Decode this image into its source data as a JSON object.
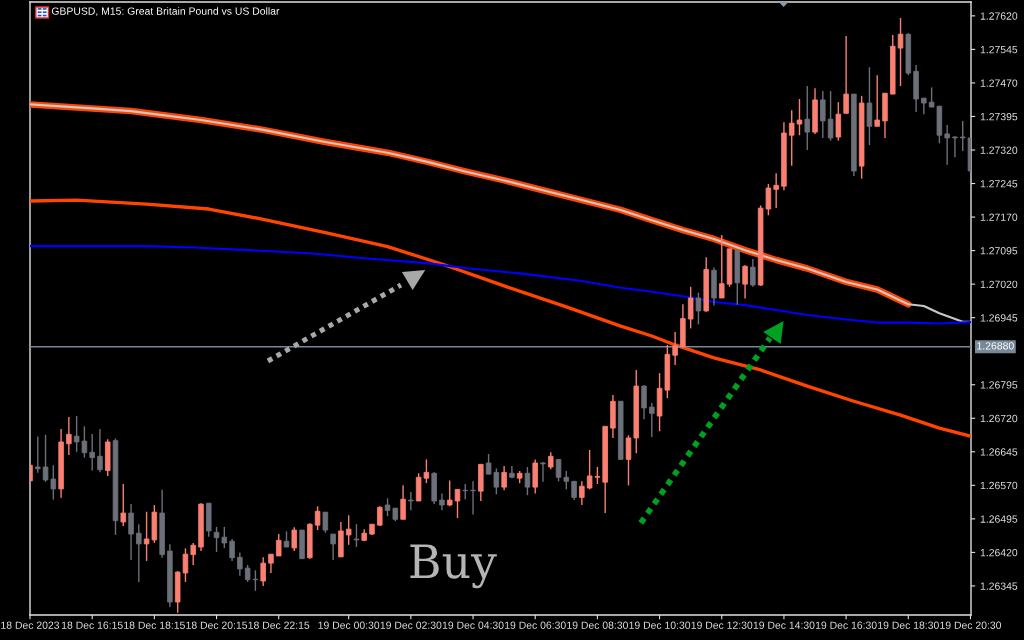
{
  "chart_data": {
    "type": "candlestick",
    "title": "GBPUSD, M15: Great Britain Pound vs US Dollar",
    "x": [
      "2023-12-18T14:15",
      "2023-12-18T14:30",
      "2023-12-18T14:45",
      "2023-12-18T15:00",
      "2023-12-18T15:15",
      "2023-12-18T15:30",
      "2023-12-18T15:45",
      "2023-12-18T16:00",
      "2023-12-18T16:15",
      "2023-12-18T16:30",
      "2023-12-18T16:45",
      "2023-12-18T17:00",
      "2023-12-18T17:15",
      "2023-12-18T17:30",
      "2023-12-18T17:45",
      "2023-12-18T18:00",
      "2023-12-18T18:15",
      "2023-12-18T18:30",
      "2023-12-18T18:45",
      "2023-12-18T19:00",
      "2023-12-18T19:15",
      "2023-12-18T19:30",
      "2023-12-18T19:45",
      "2023-12-18T20:00",
      "2023-12-18T20:15",
      "2023-12-18T20:30",
      "2023-12-18T20:45",
      "2023-12-18T21:00",
      "2023-12-18T21:15",
      "2023-12-18T21:30",
      "2023-12-18T21:45",
      "2023-12-18T22:00",
      "2023-12-18T22:15",
      "2023-12-18T22:30",
      "2023-12-18T22:45",
      "2023-12-18T23:00",
      "2023-12-18T23:15",
      "2023-12-18T23:30",
      "2023-12-18T23:45",
      "2023-12-19T00:00",
      "2023-12-19T00:15",
      "2023-12-19T00:30",
      "2023-12-19T00:45",
      "2023-12-19T01:00",
      "2023-12-19T01:15",
      "2023-12-19T01:30",
      "2023-12-19T01:45",
      "2023-12-19T02:00",
      "2023-12-19T02:15",
      "2023-12-19T02:30",
      "2023-12-19T02:45",
      "2023-12-19T03:00",
      "2023-12-19T03:15",
      "2023-12-19T03:30",
      "2023-12-19T03:45",
      "2023-12-19T04:00",
      "2023-12-19T04:15",
      "2023-12-19T04:30",
      "2023-12-19T04:45",
      "2023-12-19T05:00",
      "2023-12-19T05:15",
      "2023-12-19T05:30",
      "2023-12-19T05:45",
      "2023-12-19T06:00",
      "2023-12-19T06:15",
      "2023-12-19T06:30",
      "2023-12-19T06:45",
      "2023-12-19T07:00",
      "2023-12-19T07:15",
      "2023-12-19T07:30",
      "2023-12-19T07:45",
      "2023-12-19T08:00",
      "2023-12-19T08:15",
      "2023-12-19T08:30",
      "2023-12-19T08:45",
      "2023-12-19T09:00",
      "2023-12-19T09:15",
      "2023-12-19T09:30",
      "2023-12-19T09:45",
      "2023-12-19T10:00",
      "2023-12-19T10:15",
      "2023-12-19T10:30",
      "2023-12-19T10:45",
      "2023-12-19T11:00",
      "2023-12-19T11:15",
      "2023-12-19T11:30",
      "2023-12-19T11:45",
      "2023-12-19T12:00",
      "2023-12-19T12:15",
      "2023-12-19T12:30",
      "2023-12-19T12:45",
      "2023-12-19T13:00",
      "2023-12-19T13:15",
      "2023-12-19T13:30",
      "2023-12-19T13:45",
      "2023-12-19T14:00",
      "2023-12-19T14:15",
      "2023-12-19T14:30",
      "2023-12-19T14:45",
      "2023-12-19T15:00",
      "2023-12-19T15:15",
      "2023-12-19T15:30",
      "2023-12-19T15:45",
      "2023-12-19T16:00",
      "2023-12-19T16:15",
      "2023-12-19T16:30",
      "2023-12-19T16:45",
      "2023-12-19T17:00",
      "2023-12-19T17:15",
      "2023-12-19T17:30",
      "2023-12-19T17:45",
      "2023-12-19T18:00",
      "2023-12-19T18:15",
      "2023-12-19T18:30",
      "2023-12-19T18:45",
      "2023-12-19T19:00",
      "2023-12-19T19:15",
      "2023-12-19T19:30",
      "2023-12-19T19:45",
      "2023-12-19T20:00",
      "2023-12-19T20:15",
      "2023-12-19T20:30"
    ],
    "ohlc": [
      [
        1.2658,
        1.26615,
        1.2658,
        1.26615
      ],
      [
        1.26611,
        1.26679,
        1.26598,
        1.26607
      ],
      [
        1.26611,
        1.26683,
        1.26578,
        1.26582
      ],
      [
        1.26584,
        1.26615,
        1.26538,
        1.26562
      ],
      [
        1.26562,
        1.26696,
        1.26542,
        1.26667
      ],
      [
        1.26663,
        1.26723,
        1.26638,
        1.26684
      ],
      [
        1.2668,
        1.26725,
        1.26645,
        1.26667
      ],
      [
        1.26669,
        1.26702,
        1.26632,
        1.26643
      ],
      [
        1.26644,
        1.26685,
        1.26603,
        1.26632
      ],
      [
        1.26635,
        1.26696,
        1.26599,
        1.26605
      ],
      [
        1.26603,
        1.26673,
        1.26591,
        1.26667
      ],
      [
        1.2667,
        1.26675,
        1.26459,
        1.26491
      ],
      [
        1.26488,
        1.26573,
        1.26479,
        1.26508
      ],
      [
        1.26508,
        1.26528,
        1.26403,
        1.26461
      ],
      [
        1.26463,
        1.26483,
        1.26354,
        1.26439
      ],
      [
        1.26439,
        1.26511,
        1.26401,
        1.2645
      ],
      [
        1.26448,
        1.26526,
        1.26441,
        1.2651
      ],
      [
        1.26508,
        1.2656,
        1.26408,
        1.26415
      ],
      [
        1.26423,
        1.26438,
        1.26298,
        1.26309
      ],
      [
        1.26309,
        1.26378,
        1.26285,
        1.26376
      ],
      [
        1.26374,
        1.26429,
        1.26354,
        1.26416
      ],
      [
        1.26415,
        1.26441,
        1.26392,
        1.26436
      ],
      [
        1.26432,
        1.2653,
        1.26423,
        1.26528
      ],
      [
        1.2653,
        1.2653,
        1.26455,
        1.26468
      ],
      [
        1.26465,
        1.26477,
        1.26421,
        1.26453
      ],
      [
        1.26454,
        1.26477,
        1.2643,
        1.26441
      ],
      [
        1.26445,
        1.2645,
        1.26401,
        1.26408
      ],
      [
        1.26409,
        1.2642,
        1.26368,
        1.26383
      ],
      [
        1.26385,
        1.26392,
        1.26354,
        1.26359
      ],
      [
        1.2636,
        1.2638,
        1.26334,
        1.26359
      ],
      [
        1.26356,
        1.26409,
        1.26345,
        1.26396
      ],
      [
        1.26396,
        1.26416,
        1.26374,
        1.26416
      ],
      [
        1.26412,
        1.26461,
        1.26412,
        1.26447
      ],
      [
        1.26445,
        1.26467,
        1.26432,
        1.26432
      ],
      [
        1.2643,
        1.26476,
        1.26423,
        1.2647
      ],
      [
        1.2647,
        1.2647,
        1.26406,
        1.26406
      ],
      [
        1.26408,
        1.26485,
        1.26406,
        1.26483
      ],
      [
        1.26481,
        1.26523,
        1.2647,
        1.26512
      ],
      [
        1.2651,
        1.2651,
        1.26464,
        1.2647
      ],
      [
        1.26461,
        1.26461,
        1.26403,
        1.26439
      ],
      [
        1.2641,
        1.26488,
        1.2641,
        1.26468
      ],
      [
        1.26459,
        1.26503,
        1.26437,
        1.26472
      ],
      [
        1.2645,
        1.26483,
        1.26432,
        1.26448
      ],
      [
        1.26447,
        1.26472,
        1.26445,
        1.26463
      ],
      [
        1.26461,
        1.26483,
        1.26459,
        1.26483
      ],
      [
        1.26481,
        1.26523,
        1.26479,
        1.26521
      ],
      [
        1.26526,
        1.26541,
        1.26501,
        1.26514
      ],
      [
        1.26519,
        1.26519,
        1.2649,
        1.26494
      ],
      [
        1.26494,
        1.2657,
        1.26494,
        1.26539
      ],
      [
        1.26537,
        1.26555,
        1.26514,
        1.26535
      ],
      [
        1.26535,
        1.26597,
        1.26535,
        1.26588
      ],
      [
        1.26586,
        1.26628,
        1.26575,
        1.26599
      ],
      [
        1.26597,
        1.26599,
        1.26528,
        1.26535
      ],
      [
        1.26537,
        1.26552,
        1.26514,
        1.26526
      ],
      [
        1.26526,
        1.26581,
        1.26523,
        1.26537
      ],
      [
        1.26535,
        1.26561,
        1.26497,
        1.26561
      ],
      [
        1.26559,
        1.26573,
        1.26539,
        1.26558
      ],
      [
        1.26559,
        1.26579,
        1.26505,
        1.26558
      ],
      [
        1.26557,
        1.26617,
        1.26535,
        1.26617
      ],
      [
        1.2662,
        1.2664,
        1.26595,
        1.26595
      ],
      [
        1.26599,
        1.26608,
        1.2655,
        1.26566
      ],
      [
        1.26566,
        1.26613,
        1.26559,
        1.26599
      ],
      [
        1.26597,
        1.26613,
        1.26586,
        1.26588
      ],
      [
        1.26586,
        1.26602,
        1.26575,
        1.26597
      ],
      [
        1.26597,
        1.26611,
        1.26548,
        1.26566
      ],
      [
        1.26566,
        1.26628,
        1.26552,
        1.2662
      ],
      [
        1.2662,
        1.26622,
        1.26578,
        1.26618
      ],
      [
        1.26611,
        1.26644,
        1.26606,
        1.26635
      ],
      [
        1.26628,
        1.26628,
        1.26579,
        1.26588
      ],
      [
        1.26588,
        1.26602,
        1.26561,
        1.26579
      ],
      [
        1.26579,
        1.26579,
        1.26537,
        1.26543
      ],
      [
        1.26543,
        1.26579,
        1.26526,
        1.26568
      ],
      [
        1.26564,
        1.26649,
        1.26561,
        1.26591
      ],
      [
        1.26588,
        1.26611,
        1.26573,
        1.2659
      ],
      [
        1.26577,
        1.26702,
        1.26508,
        1.26702
      ],
      [
        1.26698,
        1.26772,
        1.26676,
        1.26758
      ],
      [
        1.26758,
        1.26758,
        1.26628,
        1.26628
      ],
      [
        1.26628,
        1.26682,
        1.2657,
        1.26676
      ],
      [
        1.26676,
        1.26828,
        1.26642,
        1.26792
      ],
      [
        1.26792,
        1.26794,
        1.26718,
        1.26743
      ],
      [
        1.26745,
        1.26754,
        1.26678,
        1.26731
      ],
      [
        1.26725,
        1.26821,
        1.26691,
        1.26787
      ],
      [
        1.26783,
        1.26884,
        1.26765,
        1.26863
      ],
      [
        1.26861,
        1.26913,
        1.26839,
        1.26882
      ],
      [
        1.2688,
        1.26975,
        1.26878,
        1.26943
      ],
      [
        1.26942,
        1.27014,
        1.26921,
        1.26989
      ],
      [
        1.26989,
        1.27001,
        1.2693,
        1.2696
      ],
      [
        1.2696,
        1.2708,
        1.26958,
        1.27053
      ],
      [
        1.27051,
        1.27057,
        1.26972,
        1.26989
      ],
      [
        1.26989,
        1.2713,
        1.26989,
        1.27021
      ],
      [
        1.2702,
        1.27099,
        1.27014,
        1.27099
      ],
      [
        1.27096,
        1.27096,
        1.26974,
        1.27023
      ],
      [
        1.2702,
        1.27062,
        1.26988,
        1.2706
      ],
      [
        1.27058,
        1.27076,
        1.27014,
        1.27018
      ],
      [
        1.27018,
        1.27196,
        1.27016,
        1.2719
      ],
      [
        1.27188,
        1.27244,
        1.27174,
        1.27235
      ],
      [
        1.27232,
        1.27268,
        1.2719,
        1.27241
      ],
      [
        1.27239,
        1.27382,
        1.2723,
        1.27358
      ],
      [
        1.27353,
        1.27409,
        1.27285,
        1.2738
      ],
      [
        1.27378,
        1.27434,
        1.27353,
        1.27387
      ],
      [
        1.27389,
        1.27463,
        1.2732,
        1.2736
      ],
      [
        1.2736,
        1.27458,
        1.27356,
        1.27432
      ],
      [
        1.27432,
        1.27452,
        1.27347,
        1.27385
      ],
      [
        1.27389,
        1.27452,
        1.27341,
        1.27347
      ],
      [
        1.27349,
        1.27427,
        1.27341,
        1.274
      ],
      [
        1.27402,
        1.27575,
        1.27402,
        1.27445
      ],
      [
        1.27445,
        1.27445,
        1.27262,
        1.27273
      ],
      [
        1.27284,
        1.27441,
        1.27256,
        1.27425
      ],
      [
        1.27425,
        1.27505,
        1.27331,
        1.27373
      ],
      [
        1.27373,
        1.27487,
        1.27373,
        1.27387
      ],
      [
        1.27385,
        1.27447,
        1.27347,
        1.27447
      ],
      [
        1.27445,
        1.27577,
        1.27445,
        1.27552
      ],
      [
        1.27548,
        1.27615,
        1.27463,
        1.27579
      ],
      [
        1.27579,
        1.27581,
        1.27487,
        1.27492
      ],
      [
        1.27496,
        1.2751,
        1.27405,
        1.27434
      ],
      [
        1.27436,
        1.27436,
        1.274,
        1.27425
      ],
      [
        1.27427,
        1.2746,
        1.27416,
        1.27416
      ],
      [
        1.27418,
        1.27418,
        1.27335,
        1.27353
      ],
      [
        1.27356,
        1.27376,
        1.27287,
        1.27347
      ],
      [
        1.27349,
        1.27351,
        1.27304,
        1.27347
      ],
      [
        1.27349,
        1.27385,
        1.27318,
        1.27347
      ],
      [
        1.27347,
        1.27347,
        1.27273,
        1.27273
      ]
    ],
    "colors": [
      "#fa8072",
      "#6b7079",
      "#6b7079",
      "#6b7079",
      "#fa8072",
      "#fa8072",
      "#6b7079",
      "#6b7079",
      "#6b7079",
      "#6b7079",
      "#fa8072",
      "#6b7079",
      "#fa8072",
      "#6b7079",
      "#6b7079",
      "#fa8072",
      "#fa8072",
      "#6b7079",
      "#6b7079",
      "#fa8072",
      "#fa8072",
      "#fa8072",
      "#fa8072",
      "#6b7079",
      "#6b7079",
      "#6b7079",
      "#6b7079",
      "#6b7079",
      "#6b7079",
      "#6b7079",
      "#fa8072",
      "#fa8072",
      "#fa8072",
      "#6b7079",
      "#fa8072",
      "#6b7079",
      "#fa8072",
      "#fa8072",
      "#6b7079",
      "#6b7079",
      "#fa8072",
      "#fa8072",
      "#6b7079",
      "#fa8072",
      "#fa8072",
      "#fa8072",
      "#6b7079",
      "#6b7079",
      "#fa8072",
      "#6b7079",
      "#fa8072",
      "#fa8072",
      "#6b7079",
      "#6b7079",
      "#fa8072",
      "#fa8072",
      "#6b7079",
      "#6b7079",
      "#fa8072",
      "#6b7079",
      "#6b7079",
      "#fa8072",
      "#6b7079",
      "#fa8072",
      "#6b7079",
      "#fa8072",
      "#6b7079",
      "#fa8072",
      "#6b7079",
      "#6b7079",
      "#6b7079",
      "#fa8072",
      "#fa8072",
      "#fa8072",
      "#fa8072",
      "#fa8072",
      "#6b7079",
      "#fa8072",
      "#fa8072",
      "#6b7079",
      "#6b7079",
      "#fa8072",
      "#fa8072",
      "#fa8072",
      "#fa8072",
      "#fa8072",
      "#6b7079",
      "#fa8072",
      "#6b7079",
      "#fa8072",
      "#fa8072",
      "#6b7079",
      "#fa8072",
      "#6b7079",
      "#fa8072",
      "#fa8072",
      "#fa8072",
      "#fa8072",
      "#fa8072",
      "#fa8072",
      "#6b7079",
      "#fa8072",
      "#6b7079",
      "#6b7079",
      "#fa8072",
      "#fa8072",
      "#6b7079",
      "#fa8072",
      "#6b7079",
      "#fa8072",
      "#fa8072",
      "#fa8072",
      "#fa8072",
      "#6b7079",
      "#6b7079",
      "#6b7079",
      "#6b7079",
      "#6b7079",
      "#6b7079",
      "#6b7079",
      "#6b7079",
      "#6b7079"
    ],
    "series": [
      {
        "type": "line",
        "color": "#ff4500",
        "x": [
          "2023-12-18T14:15",
          "2023-12-18T16:15",
          "2023-12-18T17:30",
          "2023-12-18T19:45",
          "2023-12-18T21:45",
          "2023-12-18T23:45",
          "2023-12-19T01:45",
          "2023-12-19T03:00",
          "2023-12-19T04:15",
          "2023-12-19T05:30",
          "2023-12-19T06:45",
          "2023-12-19T08:00",
          "2023-12-19T09:15",
          "2023-12-19T10:15",
          "2023-12-19T11:15",
          "2023-12-19T12:15",
          "2023-12-19T13:15",
          "2023-12-19T14:15",
          "2023-12-19T15:15",
          "2023-12-19T16:30",
          "2023-12-19T17:30",
          "2023-12-19T18:30"
        ],
        "values": [
          1.27422,
          1.27413,
          1.27407,
          1.27387,
          1.27365,
          1.27338,
          1.27314,
          1.27294,
          1.27272,
          1.27252,
          1.2723,
          1.27208,
          1.27186,
          1.27163,
          1.27141,
          1.27121,
          1.27096,
          1.27074,
          1.27055,
          1.27025,
          1.27008,
          1.26975
        ]
      },
      {
        "type": "line",
        "color": "#c8c8c8",
        "x": [
          "2023-12-18T14:15",
          "2023-12-18T16:15",
          "2023-12-18T17:30",
          "2023-12-18T19:45",
          "2023-12-18T21:45",
          "2023-12-18T23:45",
          "2023-12-19T01:45",
          "2023-12-19T03:00",
          "2023-12-19T04:15",
          "2023-12-19T05:30",
          "2023-12-19T06:45",
          "2023-12-19T08:00",
          "2023-12-19T09:15",
          "2023-12-19T10:15",
          "2023-12-19T11:15",
          "2023-12-19T12:15",
          "2023-12-19T13:15",
          "2023-12-19T14:15",
          "2023-12-19T15:15",
          "2023-12-19T16:30",
          "2023-12-19T17:30",
          "2023-12-19T18:30",
          "2023-12-19T19:00",
          "2023-12-19T19:30",
          "2023-12-19T20:15",
          "2023-12-19T20:30"
        ],
        "values": [
          1.27422,
          1.27413,
          1.27407,
          1.27387,
          1.27365,
          1.27338,
          1.27314,
          1.27294,
          1.27272,
          1.27252,
          1.2723,
          1.27208,
          1.27186,
          1.27163,
          1.27141,
          1.27121,
          1.27096,
          1.27074,
          1.27055,
          1.27025,
          1.27008,
          1.26975,
          1.26971,
          1.26955,
          1.26936,
          1.26936
        ]
      },
      {
        "type": "line",
        "color": "#ff4500",
        "x": [
          "2023-12-18T14:15",
          "2023-12-18T15:45",
          "2023-12-18T18:00",
          "2023-12-18T20:00",
          "2023-12-18T21:45",
          "2023-12-18T23:45",
          "2023-12-19T01:45",
          "2023-12-19T03:30",
          "2023-12-19T05:30",
          "2023-12-19T07:30",
          "2023-12-19T09:15",
          "2023-12-19T10:15",
          "2023-12-19T11:00",
          "2023-12-19T12:15",
          "2023-12-19T13:45",
          "2023-12-19T15:15",
          "2023-12-19T16:45",
          "2023-12-19T18:15",
          "2023-12-19T19:30",
          "2023-12-19T20:30"
        ],
        "values": [
          1.27206,
          1.27208,
          1.27199,
          1.27188,
          1.27165,
          1.27135,
          1.27104,
          1.27065,
          1.27016,
          1.26969,
          1.26926,
          1.26904,
          1.26884,
          1.26855,
          1.26828,
          1.26792,
          1.26758,
          1.26727,
          1.26698,
          1.2668
        ]
      },
      {
        "type": "line",
        "color": "#0000ff",
        "x": [
          "2023-12-18T14:15",
          "2023-12-18T18:00",
          "2023-12-18T19:30",
          "2023-12-18T21:15",
          "2023-12-18T23:15",
          "2023-12-19T01:00",
          "2023-12-19T03:00",
          "2023-12-19T04:15",
          "2023-12-19T06:00",
          "2023-12-19T08:00",
          "2023-12-19T09:15",
          "2023-12-19T10:15",
          "2023-12-19T11:15",
          "2023-12-19T12:15",
          "2023-12-19T13:15",
          "2023-12-19T14:15",
          "2023-12-19T15:15",
          "2023-12-19T16:30",
          "2023-12-19T17:30",
          "2023-12-19T18:30",
          "2023-12-19T19:30",
          "2023-12-19T20:30"
        ],
        "values": [
          1.27105,
          1.27105,
          1.27102,
          1.27096,
          1.27089,
          1.27078,
          1.27067,
          1.27056,
          1.27044,
          1.27027,
          1.27012,
          1.27003,
          1.26993,
          1.2698,
          1.26973,
          1.26962,
          1.26951,
          1.26941,
          1.26934,
          1.26934,
          1.26932,
          1.26935
        ]
      }
    ],
    "xlim": [
      "2023-12-18T14:15",
      "2023-12-19T20:31"
    ],
    "xticks": [
      {
        "value": "2023-12-18T14:15",
        "label": "18 Dec 2023"
      },
      {
        "value": "2023-12-18T16:15",
        "label": "18 Dec 16:15"
      },
      {
        "value": "2023-12-18T18:15",
        "label": "18 Dec 18:15"
      },
      {
        "value": "2023-12-18T20:15",
        "label": "18 Dec 20:15"
      },
      {
        "value": "2023-12-18T22:15",
        "label": "18 Dec 22:15"
      },
      {
        "value": "2023-12-19T00:30",
        "label": "19 Dec 00:30"
      },
      {
        "value": "2023-12-19T02:30",
        "label": "19 Dec 02:30"
      },
      {
        "value": "2023-12-19T04:30",
        "label": "19 Dec 04:30"
      },
      {
        "value": "2023-12-19T06:30",
        "label": "19 Dec 06:30"
      },
      {
        "value": "2023-12-19T08:30",
        "label": "19 Dec 08:30"
      },
      {
        "value": "2023-12-19T10:30",
        "label": "19 Dec 10:30"
      },
      {
        "value": "2023-12-19T12:30",
        "label": "19 Dec 12:30"
      },
      {
        "value": "2023-12-19T14:30",
        "label": "19 Dec 14:30"
      },
      {
        "value": "2023-12-19T16:30",
        "label": "19 Dec 16:30"
      },
      {
        "value": "2023-12-19T18:30",
        "label": "19 Dec 18:30"
      },
      {
        "value": "2023-12-19T20:30",
        "label": "19 Dec 20:30"
      }
    ],
    "ylim": [
      1.2628,
      1.27651
    ],
    "yticks": [
      1.26345,
      {
        "value": 1.2642,
        "label": "1.26420"
      },
      1.26495,
      {
        "value": 1.2657,
        "label": "1.26570"
      },
      1.26645,
      {
        "value": 1.2672,
        "label": "1.26720"
      },
      1.26795,
      1.26945,
      {
        "value": 1.2702,
        "label": "1.27020"
      },
      1.27095,
      {
        "value": 1.2717,
        "label": "1.27170"
      },
      1.27245,
      {
        "value": 1.2732,
        "label": "1.27320"
      },
      1.27395,
      {
        "value": 1.2747,
        "label": "1.27470"
      },
      1.27545,
      {
        "value": 1.2762,
        "label": "1.27620"
      }
    ],
    "ref_lines": [
      {
        "axis": "y",
        "value": 1.2688,
        "label": "1.26880",
        "color": "#778899"
      }
    ],
    "annotations": [
      "Buy"
    ]
  }
}
